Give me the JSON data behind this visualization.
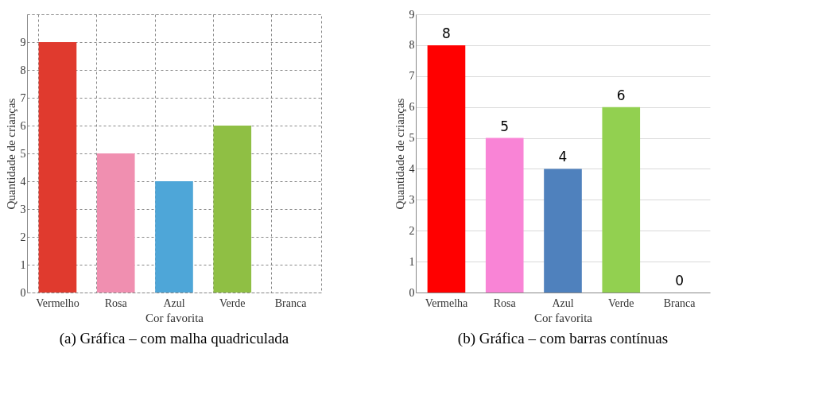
{
  "chart_data": [
    {
      "type": "bar",
      "xlabel": "Cor favorita",
      "ylabel": "Quantidade de crianças",
      "categories": [
        "Vermelho",
        "Rosa",
        "Azul",
        "Verde",
        "Branca"
      ],
      "values": [
        9,
        5,
        4,
        6,
        0
      ],
      "colors": [
        "#e03a2e",
        "#f08fb0",
        "#4ea6d8",
        "#8fbf44",
        "#ffffff"
      ],
      "ylim": [
        0,
        10
      ],
      "yticks": [
        0,
        1,
        2,
        3,
        4,
        5,
        6,
        7,
        8,
        9,
        {
          "value": 10,
          "label": null
        }
      ],
      "grid": true,
      "annotations": [
        "(a) Gráfica – com malha quadriculada"
      ]
    },
    {
      "type": "bar",
      "xlabel": "Cor favorita",
      "ylabel": "Quantidade de crianças",
      "categories": [
        "Vermelha",
        "Rosa",
        "Azul",
        "Verde",
        "Branca"
      ],
      "values": [
        8,
        5,
        4,
        6,
        0
      ],
      "colors": [
        "#ff0000",
        "#f984d6",
        "#4f81bd",
        "#92d050",
        "#ffffff"
      ],
      "ylim": [
        0,
        9
      ],
      "yticks": [
        0,
        1,
        2,
        3,
        4,
        5,
        6,
        7,
        8,
        9
      ],
      "grid": "y",
      "data_labels": true,
      "annotations": [
        "(b) Gráfica – com barras contínuas"
      ]
    }
  ]
}
